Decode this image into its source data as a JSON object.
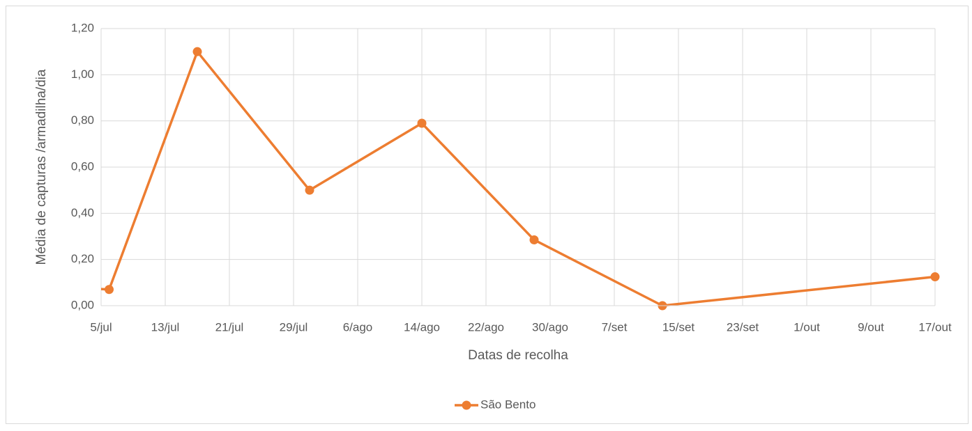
{
  "chart_data": {
    "type": "line",
    "x_label": "Datas de recolha",
    "y_label": "Média de capturas /armadilha/dia",
    "x": [
      179,
      187,
      198,
      212,
      226,
      240,
      256,
      290
    ],
    "series": [
      {
        "name": "São Bento",
        "color": "#ed7d31",
        "values": [
          0.085,
          0.07,
          1.1,
          0.5,
          0.79,
          0.285,
          0.0,
          0.125
        ]
      }
    ],
    "xlim": [
      186,
      290
    ],
    "xticks": [
      {
        "value": 186,
        "label": "5/jul"
      },
      {
        "value": 194,
        "label": "13/jul"
      },
      {
        "value": 202,
        "label": "21/jul"
      },
      {
        "value": 210,
        "label": "29/jul"
      },
      {
        "value": 218,
        "label": "6/ago"
      },
      {
        "value": 226,
        "label": "14/ago"
      },
      {
        "value": 234,
        "label": "22/ago"
      },
      {
        "value": 242,
        "label": "30/ago"
      },
      {
        "value": 250,
        "label": "7/set"
      },
      {
        "value": 258,
        "label": "15/set"
      },
      {
        "value": 266,
        "label": "23/set"
      },
      {
        "value": 274,
        "label": "1/out"
      },
      {
        "value": 282,
        "label": "9/out"
      },
      {
        "value": 290,
        "label": "17/out"
      }
    ],
    "ylim": [
      0,
      1.2
    ],
    "yticks": [
      {
        "value": 0,
        "label": "0,00"
      },
      {
        "value": 0.2,
        "label": "0,20"
      },
      {
        "value": 0.4,
        "label": "0,40"
      },
      {
        "value": 0.6,
        "label": "0,60"
      },
      {
        "value": 0.8,
        "label": "0,80"
      },
      {
        "value": 1.0,
        "label": "1,00"
      },
      {
        "value": 1.2,
        "label": "1,20"
      }
    ],
    "grid": true,
    "legend": "bottom"
  }
}
